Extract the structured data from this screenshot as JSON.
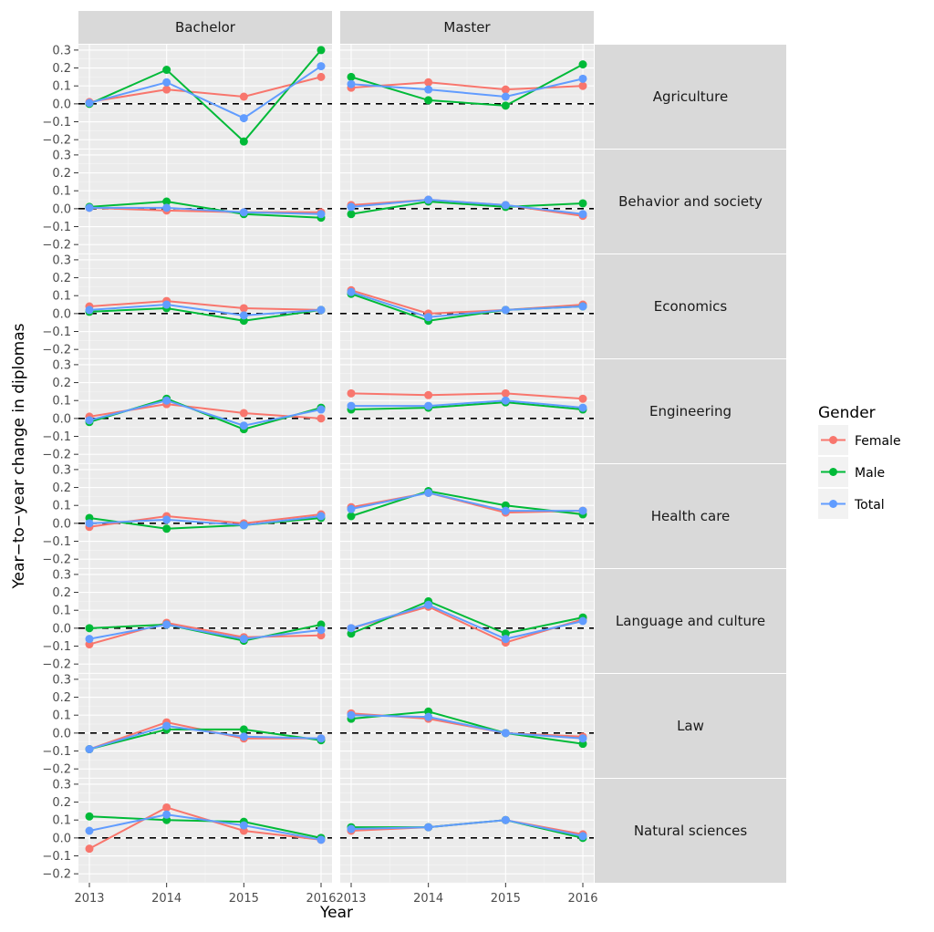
{
  "chart_data": {
    "type": "line",
    "title": "",
    "xlabel": "Year",
    "ylabel": "Year−to−year change in diplomas",
    "x": [
      2013,
      2014,
      2015,
      2016
    ],
    "x_tick_labels": [
      "2013",
      "2014",
      "2015",
      "2016"
    ],
    "ylim": [
      -0.25,
      0.33
    ],
    "y_ticks": [
      0.3,
      0.2,
      0.1,
      0.0,
      -0.1,
      -0.2
    ],
    "y_tick_labels": [
      "0.3",
      "0.2",
      "0.1",
      "0.0",
      "−0.1",
      "−0.2"
    ],
    "reference_line": {
      "y": 0.0,
      "style": "dashed"
    },
    "grid": true,
    "columns": [
      "Bachelor",
      "Master"
    ],
    "rows": [
      "Agriculture",
      "Behavior and society",
      "Economics",
      "Engineering",
      "Health care",
      "Language and culture",
      "Law",
      "Natural sciences"
    ],
    "legend": {
      "title": "Gender",
      "position": "right",
      "entries": [
        {
          "name": "Female",
          "color": "#F8766D"
        },
        {
          "name": "Male",
          "color": "#00BA38"
        },
        {
          "name": "Total",
          "color": "#619CFF"
        }
      ]
    },
    "panels": [
      {
        "row": "Agriculture",
        "column": "Bachelor",
        "series": [
          {
            "name": "Female",
            "values": [
              0.01,
              0.08,
              0.04,
              0.15
            ]
          },
          {
            "name": "Male",
            "values": [
              0.0,
              0.19,
              -0.21,
              0.3
            ]
          },
          {
            "name": "Total",
            "values": [
              0.005,
              0.12,
              -0.08,
              0.21
            ]
          }
        ]
      },
      {
        "row": "Agriculture",
        "column": "Master",
        "series": [
          {
            "name": "Female",
            "values": [
              0.09,
              0.12,
              0.08,
              0.1
            ]
          },
          {
            "name": "Male",
            "values": [
              0.15,
              0.02,
              -0.01,
              0.22
            ]
          },
          {
            "name": "Total",
            "values": [
              0.11,
              0.08,
              0.04,
              0.14
            ]
          }
        ]
      },
      {
        "row": "Behavior and society",
        "column": "Bachelor",
        "series": [
          {
            "name": "Female",
            "values": [
              0.005,
              -0.01,
              -0.02,
              -0.02
            ]
          },
          {
            "name": "Male",
            "values": [
              0.01,
              0.04,
              -0.03,
              -0.05
            ]
          },
          {
            "name": "Total",
            "values": [
              0.005,
              0.005,
              -0.02,
              -0.03
            ]
          }
        ]
      },
      {
        "row": "Behavior and society",
        "column": "Master",
        "series": [
          {
            "name": "Female",
            "values": [
              0.02,
              0.05,
              0.02,
              -0.04
            ]
          },
          {
            "name": "Male",
            "values": [
              -0.03,
              0.04,
              0.01,
              0.03
            ]
          },
          {
            "name": "Total",
            "values": [
              0.01,
              0.05,
              0.02,
              -0.03
            ]
          }
        ]
      },
      {
        "row": "Economics",
        "column": "Bachelor",
        "series": [
          {
            "name": "Female",
            "values": [
              0.04,
              0.07,
              0.03,
              0.02
            ]
          },
          {
            "name": "Male",
            "values": [
              0.01,
              0.03,
              -0.04,
              0.02
            ]
          },
          {
            "name": "Total",
            "values": [
              0.02,
              0.05,
              -0.01,
              0.02
            ]
          }
        ]
      },
      {
        "row": "Economics",
        "column": "Master",
        "series": [
          {
            "name": "Female",
            "values": [
              0.13,
              0.0,
              0.02,
              0.05
            ]
          },
          {
            "name": "Male",
            "values": [
              0.11,
              -0.04,
              0.02,
              0.04
            ]
          },
          {
            "name": "Total",
            "values": [
              0.12,
              -0.02,
              0.02,
              0.04
            ]
          }
        ]
      },
      {
        "row": "Engineering",
        "column": "Bachelor",
        "series": [
          {
            "name": "Female",
            "values": [
              0.01,
              0.08,
              0.03,
              0.0
            ]
          },
          {
            "name": "Male",
            "values": [
              -0.02,
              0.11,
              -0.06,
              0.06
            ]
          },
          {
            "name": "Total",
            "values": [
              -0.01,
              0.1,
              -0.04,
              0.05
            ]
          }
        ]
      },
      {
        "row": "Engineering",
        "column": "Master",
        "series": [
          {
            "name": "Female",
            "values": [
              0.14,
              0.13,
              0.14,
              0.11
            ]
          },
          {
            "name": "Male",
            "values": [
              0.05,
              0.06,
              0.09,
              0.05
            ]
          },
          {
            "name": "Total",
            "values": [
              0.07,
              0.07,
              0.1,
              0.06
            ]
          }
        ]
      },
      {
        "row": "Health care",
        "column": "Bachelor",
        "series": [
          {
            "name": "Female",
            "values": [
              -0.02,
              0.04,
              0.0,
              0.05
            ]
          },
          {
            "name": "Male",
            "values": [
              0.03,
              -0.03,
              -0.01,
              0.03
            ]
          },
          {
            "name": "Total",
            "values": [
              0.0,
              0.02,
              -0.01,
              0.04
            ]
          }
        ]
      },
      {
        "row": "Health care",
        "column": "Master",
        "series": [
          {
            "name": "Female",
            "values": [
              0.09,
              0.17,
              0.06,
              0.07
            ]
          },
          {
            "name": "Male",
            "values": [
              0.04,
              0.18,
              0.1,
              0.05
            ]
          },
          {
            "name": "Total",
            "values": [
              0.08,
              0.17,
              0.07,
              0.07
            ]
          }
        ]
      },
      {
        "row": "Language and culture",
        "column": "Bachelor",
        "series": [
          {
            "name": "Female",
            "values": [
              -0.09,
              0.03,
              -0.05,
              -0.04
            ]
          },
          {
            "name": "Male",
            "values": [
              0.0,
              0.02,
              -0.07,
              0.02
            ]
          },
          {
            "name": "Total",
            "values": [
              -0.06,
              0.02,
              -0.06,
              -0.01
            ]
          }
        ]
      },
      {
        "row": "Language and culture",
        "column": "Master",
        "series": [
          {
            "name": "Female",
            "values": [
              0.0,
              0.12,
              -0.08,
              0.05
            ]
          },
          {
            "name": "Male",
            "values": [
              -0.03,
              0.15,
              -0.03,
              0.06
            ]
          },
          {
            "name": "Total",
            "values": [
              0.0,
              0.13,
              -0.06,
              0.04
            ]
          }
        ]
      },
      {
        "row": "Law",
        "column": "Bachelor",
        "series": [
          {
            "name": "Female",
            "values": [
              -0.09,
              0.06,
              -0.03,
              -0.03
            ]
          },
          {
            "name": "Male",
            "values": [
              -0.09,
              0.02,
              0.02,
              -0.04
            ]
          },
          {
            "name": "Total",
            "values": [
              -0.09,
              0.04,
              -0.02,
              -0.03
            ]
          }
        ]
      },
      {
        "row": "Law",
        "column": "Master",
        "series": [
          {
            "name": "Female",
            "values": [
              0.11,
              0.08,
              0.0,
              -0.02
            ]
          },
          {
            "name": "Male",
            "values": [
              0.08,
              0.12,
              0.0,
              -0.06
            ]
          },
          {
            "name": "Total",
            "values": [
              0.1,
              0.09,
              0.0,
              -0.03
            ]
          }
        ]
      },
      {
        "row": "Natural sciences",
        "column": "Bachelor",
        "series": [
          {
            "name": "Female",
            "values": [
              -0.06,
              0.17,
              0.04,
              -0.01
            ]
          },
          {
            "name": "Male",
            "values": [
              0.12,
              0.1,
              0.09,
              0.0
            ]
          },
          {
            "name": "Total",
            "values": [
              0.04,
              0.13,
              0.07,
              -0.01
            ]
          }
        ]
      },
      {
        "row": "Natural sciences",
        "column": "Master",
        "series": [
          {
            "name": "Female",
            "values": [
              0.04,
              0.06,
              0.1,
              0.02
            ]
          },
          {
            "name": "Male",
            "values": [
              0.06,
              0.06,
              0.1,
              0.0
            ]
          },
          {
            "name": "Total",
            "values": [
              0.05,
              0.06,
              0.1,
              0.01
            ]
          }
        ]
      }
    ]
  }
}
